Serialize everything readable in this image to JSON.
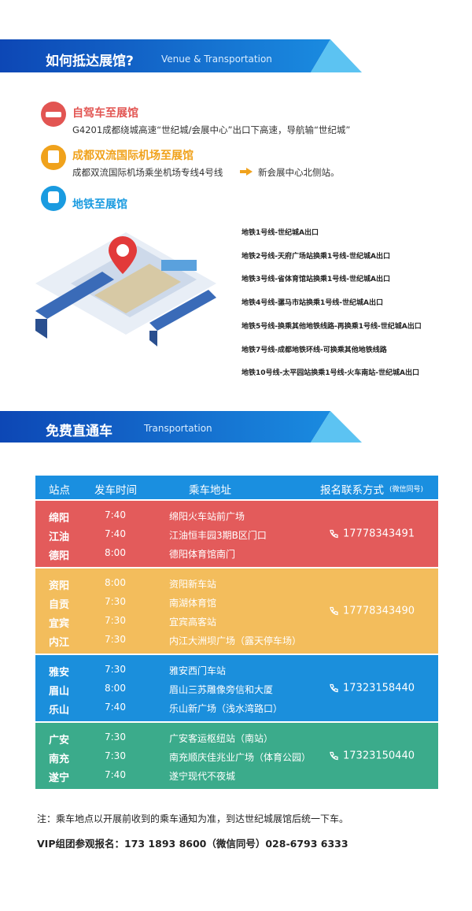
{
  "venue": {
    "title": "如何抵达展馆?",
    "subtitle": "Venue & Transportation",
    "routes": [
      {
        "title": "自驾车至展馆",
        "color": "#e25552",
        "desc": "G4201成都绕城高速“世纪城/会展中心”出口下高速，导航输“世纪城”"
      },
      {
        "title": "成都双流国际机场至展馆",
        "color": "#f0a21c",
        "desc": "成都双流国际机场乘坐机场专线4号线",
        "desc_end": "新会展中心北侧站。"
      },
      {
        "title": "地铁至展馆",
        "color": "#1a9be0"
      }
    ],
    "metro_lines": [
      "地铁1号线-世纪城A出口",
      "地铁2号线-天府广场站换乘1号线-世纪城A出口",
      "地铁3号线-省体育馆站换乘1号线-世纪城A出口",
      "地铁4号线-骡马市站换乘1号线-世纪城A出口",
      "地铁5号线-换乘其他地铁线路-再换乘1号线-世纪城A出口",
      "地铁7号线-成都地铁环线-可换乘其他地铁线路",
      "地铁10号线-太平园站换乘1号线-火车南站-世纪城A出口"
    ]
  },
  "transport": {
    "title": "免费直通车",
    "subtitle": "Transportation",
    "header": [
      "站点",
      "发车时间",
      "乘车地址",
      "报名联系方式"
    ],
    "header_note": "(微信同号)",
    "groups": [
      {
        "color": "#e35b5b",
        "phone": "17778343491",
        "rows": [
          {
            "city": "绵阳",
            "time": "7:40",
            "address": "绵阳火车站前广场"
          },
          {
            "city": "江油",
            "time": "7:40",
            "address": "江油恒丰园3期B区门口"
          },
          {
            "city": "德阳",
            "time": "8:00",
            "address": "德阳体育馆南门"
          }
        ]
      },
      {
        "color": "#f3bd5c",
        "phone": "17778343490",
        "rows": [
          {
            "city": "资阳",
            "time": "8:00",
            "address": "资阳新车站"
          },
          {
            "city": "自贡",
            "time": "7:30",
            "address": "南湖体育馆"
          },
          {
            "city": "宜宾",
            "time": "7:30",
            "address": "宜宾高客站"
          },
          {
            "city": "内江",
            "time": "7:30",
            "address": "内江大洲坝广场（露天停车场）"
          }
        ]
      },
      {
        "color": "#1b8fdc",
        "phone": "17323158440",
        "rows": [
          {
            "city": "雅安",
            "time": "7:30",
            "address": "雅安西门车站"
          },
          {
            "city": "眉山",
            "time": "8:00",
            "address": "眉山三苏雕像旁信和大厦"
          },
          {
            "city": "乐山",
            "time": "7:40",
            "address": "乐山新广场（浅水湾路口）"
          }
        ]
      },
      {
        "color": "#3bab8b",
        "phone": "17323150440",
        "rows": [
          {
            "city": "广安",
            "time": "7:30",
            "address": "广安客运枢纽站（南站）"
          },
          {
            "city": "南充",
            "time": "7:30",
            "address": "南充顺庆佳兆业广场（体育公园）"
          },
          {
            "city": "遂宁",
            "time": "7:40",
            "address": "遂宁现代不夜城"
          }
        ]
      }
    ],
    "note": "注：乘车地点以开展前收到的乘车通知为准，到达世纪城展馆后统一下车。",
    "vip": "VIP组团参观报名：173 1893 8600（微信同号）028-6793 6333"
  }
}
